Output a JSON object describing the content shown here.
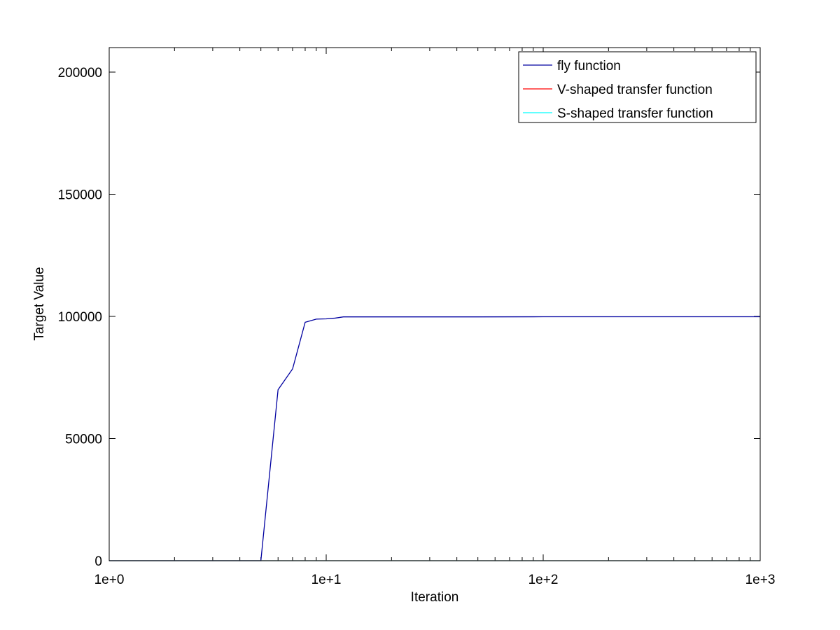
{
  "chart_data": {
    "type": "line",
    "xlabel": "Iteration",
    "ylabel": "Target Value",
    "xscale": "log",
    "xlim": [
      1,
      1000
    ],
    "ylim": [
      0,
      210000
    ],
    "xticks": [
      {
        "value": 1,
        "label": "1e+0"
      },
      {
        "value": 10,
        "label": "1e+1"
      },
      {
        "value": 100,
        "label": "1e+2"
      },
      {
        "value": 1000,
        "label": "1e+3"
      }
    ],
    "yticks": [
      {
        "value": 0,
        "label": "0"
      },
      {
        "value": 50000,
        "label": "50000"
      },
      {
        "value": 100000,
        "label": "100000"
      },
      {
        "value": 150000,
        "label": "150000"
      },
      {
        "value": 200000,
        "label": "200000"
      }
    ],
    "grid": false,
    "legend_position": "top-right",
    "series": [
      {
        "name": "fly function",
        "color": "#0000a0",
        "x": [
          1,
          2,
          3,
          4,
          5,
          6,
          7,
          8,
          9,
          10,
          11,
          12,
          20,
          50,
          100,
          1000
        ],
        "y": [
          0,
          0,
          0,
          0,
          0,
          70000,
          78500,
          97600,
          98900,
          99000,
          99300,
          99800,
          99800,
          99800,
          99850,
          99850
        ]
      },
      {
        "name": "V-shaped transfer function",
        "color": "#ff0000",
        "x": [
          1,
          10,
          100,
          1000
        ],
        "y": [
          0,
          0,
          0,
          0
        ]
      },
      {
        "name": "S-shaped transfer function",
        "color": "#00ffff",
        "x": [
          1,
          10,
          100,
          1000
        ],
        "y": [
          0,
          0,
          0,
          0
        ]
      }
    ]
  }
}
